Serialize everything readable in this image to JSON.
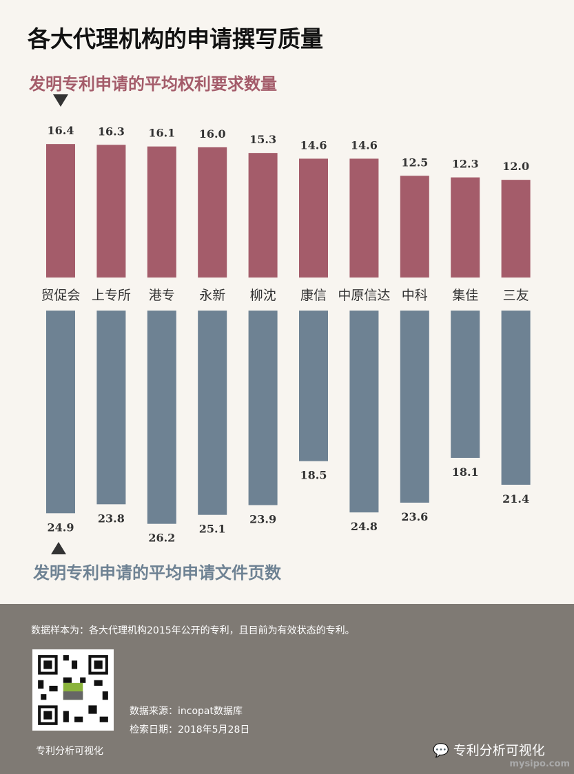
{
  "title": "各大代理机构的申请撰写质量",
  "chart_data": {
    "type": "bar",
    "categories": [
      "贸促会",
      "上专所",
      "港专",
      "永新",
      "柳沈",
      "康信",
      "中原信达",
      "中科",
      "集佳",
      "三友"
    ],
    "series": [
      {
        "name": "发明专利申请的平均权利要求数量",
        "values": [
          16.4,
          16.3,
          16.1,
          16.0,
          15.3,
          14.6,
          14.6,
          12.5,
          12.3,
          12.0
        ],
        "color": "#a45c6a",
        "labels": [
          "16.4",
          "16.3",
          "16.1",
          "16.0",
          "15.3",
          "14.6",
          "14.6",
          "12.5",
          "12.3",
          "12.0"
        ]
      },
      {
        "name": "发明专利申请的平均申请文件页数",
        "values": [
          24.9,
          23.8,
          26.2,
          25.1,
          23.9,
          18.5,
          24.8,
          23.6,
          18.1,
          21.4
        ],
        "color": "#6e8293",
        "labels": [
          "24.9",
          "23.8",
          "26.2",
          "25.1",
          "23.9",
          "18.5",
          "24.8",
          "23.6",
          "18.1",
          "21.4"
        ]
      }
    ]
  },
  "footer": {
    "note": "数据样本为：各大代理机构2015年公开的专利，且目前为有效状态的专利。",
    "qr_label": "专利分析可视化",
    "source": "数据来源：incopat数据库",
    "date": "检索日期：2018年5月28日",
    "brand": "专利分析可视化",
    "watermark": "mysipo.com"
  }
}
